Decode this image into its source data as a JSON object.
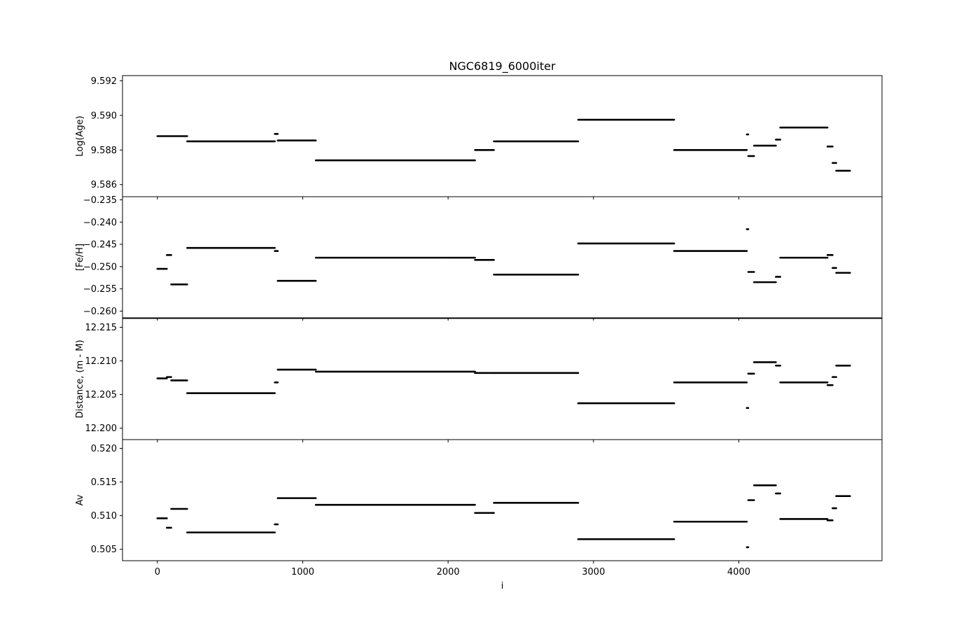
{
  "chart_data": {
    "type": "line",
    "title": "NGC6819_6000iter",
    "xlabel": "i",
    "xlim": [
      -240,
      4985
    ],
    "xticks": [
      0,
      1000,
      2000,
      3000,
      4000
    ],
    "xtick_labels": [
      "0",
      "1000",
      "2000",
      "3000",
      "4000"
    ],
    "grid": false,
    "line_color": "#000000",
    "panels": [
      {
        "ylabel": "Log(Age)",
        "ylim": [
          9.5853,
          9.5923
        ],
        "yticks": [
          9.586,
          9.588,
          9.59,
          9.592
        ],
        "ytick_labels": [
          "9.586",
          "9.588",
          "9.590",
          "9.592"
        ],
        "segments": [
          {
            "x": [
              0,
              205
            ],
            "y": 9.5888
          },
          {
            "x": [
              205,
              808
            ],
            "y": 9.5885
          },
          {
            "x": [
              808,
              828
            ],
            "y": 9.58893
          },
          {
            "x": [
              828,
              1090
            ],
            "y": 9.58855
          },
          {
            "x": [
              1090,
              2185
            ],
            "y": 9.5874
          },
          {
            "x": [
              2185,
              2315
            ],
            "y": 9.588
          },
          {
            "x": [
              2315,
              2895
            ],
            "y": 9.5885
          },
          {
            "x": [
              2895,
              3555
            ],
            "y": 9.58975
          },
          {
            "x": [
              3555,
              4055
            ],
            "y": 9.588
          },
          {
            "x": [
              4055,
              4065
            ],
            "y": 9.5889
          },
          {
            "x": [
              4065,
              4105
            ],
            "y": 9.58765
          },
          {
            "x": [
              4105,
              4255
            ],
            "y": 9.58825
          },
          {
            "x": [
              4255,
              4285
            ],
            "y": 9.5886
          },
          {
            "x": [
              4285,
              4610
            ],
            "y": 9.5893
          },
          {
            "x": [
              4610,
              4645
            ],
            "y": 9.5882
          },
          {
            "x": [
              4645,
              4670
            ],
            "y": 9.58725
          },
          {
            "x": [
              4670,
              4765
            ],
            "y": 9.5868
          }
        ]
      },
      {
        "ylabel": "[Fe/H]",
        "ylim": [
          -0.2615,
          -0.2343
        ],
        "yticks": [
          -0.26,
          -0.255,
          -0.25,
          -0.245,
          -0.24,
          -0.235
        ],
        "ytick_labels": [
          "−0.260",
          "−0.255",
          "−0.250",
          "−0.245",
          "−0.240",
          "−0.235"
        ],
        "segments": [
          {
            "x": [
              0,
              65
            ],
            "y": -0.2505
          },
          {
            "x": [
              65,
              95
            ],
            "y": -0.2474
          },
          {
            "x": [
              95,
              205
            ],
            "y": -0.254
          },
          {
            "x": [
              205,
              808
            ],
            "y": -0.2458
          },
          {
            "x": [
              808,
              828
            ],
            "y": -0.2465
          },
          {
            "x": [
              828,
              1090
            ],
            "y": -0.2532
          },
          {
            "x": [
              1090,
              2185
            ],
            "y": -0.248
          },
          {
            "x": [
              2185,
              2315
            ],
            "y": -0.2485
          },
          {
            "x": [
              2315,
              2895
            ],
            "y": -0.2518
          },
          {
            "x": [
              2895,
              3555
            ],
            "y": -0.2448
          },
          {
            "x": [
              3555,
              4055
            ],
            "y": -0.2465
          },
          {
            "x": [
              4055,
              4065
            ],
            "y": -0.2416
          },
          {
            "x": [
              4065,
              4105
            ],
            "y": -0.2512
          },
          {
            "x": [
              4105,
              4255
            ],
            "y": -0.2535
          },
          {
            "x": [
              4255,
              4285
            ],
            "y": -0.2523
          },
          {
            "x": [
              4285,
              4610
            ],
            "y": -0.248
          },
          {
            "x": [
              4610,
              4645
            ],
            "y": -0.2474
          },
          {
            "x": [
              4645,
              4670
            ],
            "y": -0.2503
          },
          {
            "x": [
              4670,
              4765
            ],
            "y": -0.2514
          }
        ]
      },
      {
        "ylabel": "Distance, (m - M)",
        "ylim": [
          12.1983,
          12.2163
        ],
        "yticks": [
          12.2,
          12.205,
          12.21,
          12.215
        ],
        "ytick_labels": [
          "12.200",
          "12.205",
          "12.210",
          "12.215"
        ],
        "segments": [
          {
            "x": [
              0,
              65
            ],
            "y": 12.2074
          },
          {
            "x": [
              65,
              95
            ],
            "y": 12.2076
          },
          {
            "x": [
              95,
              205
            ],
            "y": 12.2071
          },
          {
            "x": [
              205,
              808
            ],
            "y": 12.2052
          },
          {
            "x": [
              808,
              828
            ],
            "y": 12.2068
          },
          {
            "x": [
              828,
              1090
            ],
            "y": 12.2087
          },
          {
            "x": [
              1090,
              2185
            ],
            "y": 12.2084
          },
          {
            "x": [
              2185,
              2315
            ],
            "y": 12.2082
          },
          {
            "x": [
              2315,
              2895
            ],
            "y": 12.2082
          },
          {
            "x": [
              2895,
              3555
            ],
            "y": 12.2037
          },
          {
            "x": [
              3555,
              4055
            ],
            "y": 12.2068
          },
          {
            "x": [
              4055,
              4065
            ],
            "y": 12.203
          },
          {
            "x": [
              4065,
              4105
            ],
            "y": 12.2081
          },
          {
            "x": [
              4105,
              4255
            ],
            "y": 12.2098
          },
          {
            "x": [
              4255,
              4285
            ],
            "y": 12.2093
          },
          {
            "x": [
              4285,
              4610
            ],
            "y": 12.2068
          },
          {
            "x": [
              4610,
              4645
            ],
            "y": 12.2064
          },
          {
            "x": [
              4645,
              4670
            ],
            "y": 12.2076
          },
          {
            "x": [
              4670,
              4765
            ],
            "y": 12.2093
          }
        ]
      },
      {
        "ylabel": "Av",
        "ylim": [
          0.5033,
          0.5213
        ],
        "yticks": [
          0.505,
          0.51,
          0.515,
          0.52
        ],
        "ytick_labels": [
          "0.505",
          "0.510",
          "0.515",
          "0.520"
        ],
        "segments": [
          {
            "x": [
              0,
              65
            ],
            "y": 0.5096
          },
          {
            "x": [
              65,
              95
            ],
            "y": 0.5082
          },
          {
            "x": [
              95,
              205
            ],
            "y": 0.511
          },
          {
            "x": [
              205,
              808
            ],
            "y": 0.5075
          },
          {
            "x": [
              808,
              828
            ],
            "y": 0.5087
          },
          {
            "x": [
              828,
              1090
            ],
            "y": 0.5126
          },
          {
            "x": [
              1090,
              2185
            ],
            "y": 0.5116
          },
          {
            "x": [
              2185,
              2315
            ],
            "y": 0.5104
          },
          {
            "x": [
              2315,
              2895
            ],
            "y": 0.5119
          },
          {
            "x": [
              2895,
              3555
            ],
            "y": 0.5065
          },
          {
            "x": [
              3555,
              4055
            ],
            "y": 0.5091
          },
          {
            "x": [
              4055,
              4065
            ],
            "y": 0.5053
          },
          {
            "x": [
              4065,
              4105
            ],
            "y": 0.5123
          },
          {
            "x": [
              4105,
              4255
            ],
            "y": 0.5145
          },
          {
            "x": [
              4255,
              4285
            ],
            "y": 0.5133
          },
          {
            "x": [
              4285,
              4610
            ],
            "y": 0.5095
          },
          {
            "x": [
              4610,
              4645
            ],
            "y": 0.5093
          },
          {
            "x": [
              4645,
              4670
            ],
            "y": 0.5111
          },
          {
            "x": [
              4670,
              4765
            ],
            "y": 0.5129
          }
        ]
      }
    ]
  }
}
